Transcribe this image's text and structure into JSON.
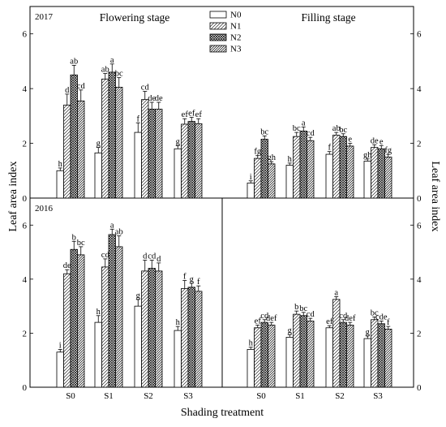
{
  "figure": {
    "ylabel": "Leaf area index",
    "xlabel": "Shading treatment"
  },
  "colors": {
    "background": "#ffffff",
    "axis": "#000000",
    "bar_stroke": "#000000",
    "bar_fill": "#ffffff"
  },
  "chart_data": [
    {
      "type": "bar",
      "year": "2017",
      "title": "Flowering stage",
      "categories": [
        "S0",
        "S1",
        "S2",
        "S3"
      ],
      "ylim": [
        0,
        7
      ],
      "yticks": [
        "0",
        "2",
        "4",
        "6"
      ],
      "series": [
        {
          "name": "N0",
          "pattern": "none",
          "values": [
            1.0,
            1.65,
            2.4,
            1.8
          ],
          "errors": [
            0.1,
            0.2,
            0.35,
            0.12
          ],
          "labels": [
            "h",
            "g",
            "f",
            "g"
          ]
        },
        {
          "name": "N1",
          "pattern": "hatch-light",
          "values": [
            3.4,
            4.35,
            3.6,
            2.7
          ],
          "errors": [
            0.4,
            0.2,
            0.3,
            0.2
          ],
          "labels": [
            "d",
            "ab",
            "cd",
            "ef"
          ]
        },
        {
          "name": "N2",
          "pattern": "crosshatch",
          "values": [
            4.5,
            4.6,
            3.25,
            2.8
          ],
          "errors": [
            0.35,
            0.3,
            0.25,
            0.15
          ],
          "labels": [
            "ab",
            "a",
            "de",
            "ef"
          ]
        },
        {
          "name": "N3",
          "pattern": "hatch-dense",
          "values": [
            3.55,
            4.05,
            3.25,
            2.72
          ],
          "errors": [
            0.4,
            0.35,
            0.25,
            0.18
          ],
          "labels": [
            "cd",
            "bc",
            "de",
            "ef"
          ]
        }
      ]
    },
    {
      "type": "bar",
      "year": "",
      "title": "Filling stage",
      "categories": [
        "S0",
        "S1",
        "S2",
        "S3"
      ],
      "ylim": [
        0,
        7
      ],
      "yticks": [
        "0",
        "2",
        "4",
        "6"
      ],
      "series": [
        {
          "name": "N0",
          "pattern": "none",
          "values": [
            0.55,
            1.2,
            1.6,
            1.35
          ],
          "errors": [
            0.08,
            0.08,
            0.1,
            0.08
          ],
          "labels": [
            "i",
            "h",
            "f",
            "gh"
          ]
        },
        {
          "name": "N1",
          "pattern": "hatch-light",
          "values": [
            1.45,
            2.25,
            2.3,
            1.85
          ],
          "errors": [
            0.1,
            0.15,
            0.1,
            0.1
          ],
          "labels": [
            "fg",
            "bc",
            "ab",
            "de"
          ]
        },
        {
          "name": "N2",
          "pattern": "crosshatch",
          "values": [
            2.15,
            2.45,
            2.25,
            1.8
          ],
          "errors": [
            0.12,
            0.15,
            0.1,
            0.12
          ],
          "labels": [
            "bc",
            "a",
            "bc",
            "e"
          ]
        },
        {
          "name": "N3",
          "pattern": "hatch-dense",
          "values": [
            1.25,
            2.1,
            1.9,
            1.5
          ],
          "errors": [
            0.08,
            0.12,
            0.1,
            0.1
          ],
          "labels": [
            "gh",
            "cd",
            "e",
            "fg"
          ]
        }
      ]
    },
    {
      "type": "bar",
      "year": "2016",
      "title": "",
      "categories": [
        "S0",
        "S1",
        "S2",
        "S3"
      ],
      "ylim": [
        0,
        7
      ],
      "yticks": [
        "0",
        "2",
        "4",
        "6"
      ],
      "series": [
        {
          "name": "N0",
          "pattern": "none",
          "values": [
            1.3,
            2.4,
            3.0,
            2.1
          ],
          "errors": [
            0.1,
            0.25,
            0.25,
            0.15
          ],
          "labels": [
            "i",
            "h",
            "g",
            "h"
          ]
        },
        {
          "name": "N1",
          "pattern": "hatch-light",
          "values": [
            4.2,
            4.45,
            4.3,
            3.65
          ],
          "errors": [
            0.15,
            0.3,
            0.4,
            0.3
          ],
          "labels": [
            "de",
            "cd",
            "d",
            "f"
          ]
        },
        {
          "name": "N2",
          "pattern": "crosshatch",
          "values": [
            5.1,
            5.65,
            4.4,
            3.7
          ],
          "errors": [
            0.3,
            0.2,
            0.3,
            0.15
          ],
          "labels": [
            "b",
            "a",
            "cd",
            "g"
          ]
        },
        {
          "name": "N3",
          "pattern": "hatch-dense",
          "values": [
            4.9,
            5.2,
            4.3,
            3.55
          ],
          "errors": [
            0.3,
            0.4,
            0.3,
            0.2
          ],
          "labels": [
            "bc",
            "ab",
            "d",
            "f"
          ]
        }
      ]
    },
    {
      "type": "bar",
      "year": "",
      "title": "",
      "categories": [
        "S0",
        "S1",
        "S2",
        "S3"
      ],
      "ylim": [
        0,
        7
      ],
      "yticks": [
        "0",
        "2",
        "4",
        "6"
      ],
      "series": [
        {
          "name": "N0",
          "pattern": "none",
          "values": [
            1.4,
            1.85,
            2.2,
            1.8
          ],
          "errors": [
            0.08,
            0.1,
            0.08,
            0.1
          ],
          "labels": [
            "h",
            "g",
            "ef",
            "g"
          ]
        },
        {
          "name": "N1",
          "pattern": "hatch-light",
          "values": [
            2.2,
            2.7,
            3.25,
            2.5
          ],
          "errors": [
            0.1,
            0.12,
            0.1,
            0.1
          ],
          "labels": [
            "ef",
            "b",
            "a",
            "bc"
          ]
        },
        {
          "name": "N2",
          "pattern": "crosshatch",
          "values": [
            2.4,
            2.65,
            2.4,
            2.35
          ],
          "errors": [
            0.1,
            0.12,
            0.1,
            0.1
          ],
          "labels": [
            "cd",
            "bc",
            "cd",
            "cde"
          ]
        },
        {
          "name": "N3",
          "pattern": "hatch-dense",
          "values": [
            2.3,
            2.45,
            2.3,
            2.15
          ],
          "errors": [
            0.1,
            0.1,
            0.1,
            0.1
          ],
          "labels": [
            "def",
            "cd",
            "def",
            "f"
          ]
        }
      ]
    }
  ]
}
